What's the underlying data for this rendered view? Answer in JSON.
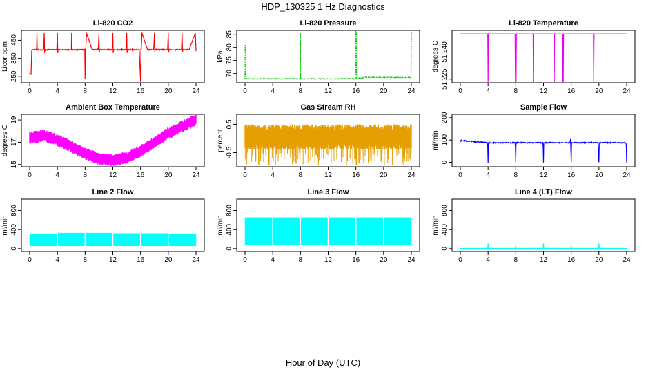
{
  "figure": {
    "title": "HDP_130325  1 Hz Diagnostics",
    "xlabel": "Hour of Day (UTC)"
  },
  "chart_data": [
    {
      "type": "line",
      "title": "Li-820 CO2",
      "xlabel": "",
      "ylabel": "Licor ppm",
      "xlim": [
        0,
        24
      ],
      "ylim": [
        215,
        505
      ],
      "x_ticks": [
        "0",
        "4",
        "8",
        "12",
        "16",
        "20",
        "24"
      ],
      "y_ticks": [
        250,
        350,
        450
      ],
      "y_tick_labels": [
        "250",
        "350",
        "450"
      ],
      "color": "#ff0000",
      "baseline": 398,
      "noise": 5,
      "draw": "line",
      "series": [
        {
          "x": [
            0,
            0.2,
            0.25,
            0.3,
            0.5,
            1.0,
            1.05,
            1.1,
            1.6,
            2.0,
            2.1,
            2.15,
            2.2,
            3.0,
            3.5,
            3.9,
            4.0,
            4.05,
            4.1,
            5.0,
            5.5,
            6.0,
            6.05,
            6.1,
            7.0,
            7.8,
            7.95,
            8.0,
            8.05,
            8.1,
            8.2,
            9.0,
            9.8,
            9.9,
            10.0,
            10.05,
            10.1,
            11.0,
            11.9,
            12.0,
            12.05,
            12.1,
            13.0,
            13.9,
            14.0,
            14.05,
            14.1,
            15.0,
            15.8,
            16.0,
            16.05,
            16.1,
            16.2,
            17.0,
            17.9,
            18.0,
            18.05,
            18.1,
            19.0,
            19.9,
            20.0,
            20.05,
            20.1,
            21.0,
            21.9,
            22.0,
            22.05,
            22.1,
            23.0,
            23.9,
            24.0
          ],
          "y": [
            265,
            265,
            330,
            398,
            398,
            398,
            490,
            398,
            398,
            398,
            490,
            380,
            398,
            398,
            398,
            398,
            490,
            380,
            398,
            398,
            398,
            398,
            490,
            398,
            398,
            398,
            400,
            235,
            400,
            398,
            490,
            398,
            398,
            398,
            490,
            385,
            398,
            398,
            398,
            490,
            380,
            398,
            398,
            398,
            490,
            380,
            398,
            398,
            398,
            220,
            400,
            398,
            490,
            398,
            398,
            490,
            385,
            398,
            398,
            398,
            490,
            382,
            398,
            398,
            398,
            490,
            385,
            398,
            398,
            490,
            390
          ]
        }
      ]
    },
    {
      "type": "line",
      "title": "Li-820 Pressure",
      "xlabel": "",
      "ylabel": "kPa",
      "xlim": [
        0,
        24
      ],
      "ylim": [
        66.5,
        86.5
      ],
      "x_ticks": [
        "0",
        "4",
        "8",
        "12",
        "16",
        "20",
        "24"
      ],
      "y_ticks": [
        70,
        75,
        80,
        85
      ],
      "y_tick_labels": [
        "70",
        "75",
        "80",
        "85"
      ],
      "color": "#00c000",
      "baseline": 68,
      "noise": 0.2,
      "draw": "dotted",
      "series": [
        {
          "x": [
            0,
            0.02,
            0.05,
            0.1,
            0.2,
            4.0,
            7.99,
            8.0,
            8.02,
            8.1,
            12.0,
            15.95,
            16.0,
            16.05,
            16.1,
            17.0,
            17.1,
            20.0,
            23.95,
            24.0
          ],
          "y": [
            68,
            81,
            73,
            70,
            68,
            68,
            68,
            85.5,
            68,
            68,
            68,
            68,
            86,
            86,
            68.3,
            68.3,
            68.6,
            68.5,
            68.5,
            86
          ]
        }
      ]
    },
    {
      "type": "line",
      "title": "Li-820 Temperature",
      "xlabel": "",
      "ylabel": "degrees C",
      "xlim": [
        0,
        24
      ],
      "ylim": [
        51.223,
        51.252
      ],
      "x_ticks": [
        "0",
        "4",
        "8",
        "12",
        "16",
        "20",
        "24"
      ],
      "y_ticks": [
        51.225,
        51.24
      ],
      "y_tick_labels": [
        "51.225",
        "51.240"
      ],
      "color": "#ee00ee",
      "baseline": 51.25,
      "noise": 0,
      "draw": "line",
      "series": [
        {
          "x": [
            0,
            3.95,
            4.0,
            4.05,
            7.9,
            7.95,
            8.0,
            8.05,
            8.1,
            10.5,
            10.55,
            10.6,
            13.5,
            13.55,
            13.6,
            14.7,
            14.75,
            14.8,
            14.85,
            14.9,
            19.2,
            19.25,
            19.3,
            24
          ],
          "y": [
            51.25,
            51.25,
            51.223,
            51.25,
            51.25,
            51.223,
            51.223,
            51.223,
            51.25,
            51.25,
            51.223,
            51.25,
            51.25,
            51.223,
            51.25,
            51.25,
            51.223,
            51.25,
            51.223,
            51.25,
            51.25,
            51.223,
            51.25,
            51.25
          ]
        }
      ]
    },
    {
      "type": "line",
      "title": "Ambient Box Temperature",
      "xlabel": "",
      "ylabel": "degrees C",
      "xlim": [
        0,
        24
      ],
      "ylim": [
        14.8,
        19.5
      ],
      "x_ticks": [
        "0",
        "4",
        "8",
        "12",
        "16",
        "20",
        "24"
      ],
      "y_ticks": [
        15,
        17,
        19
      ],
      "y_tick_labels": [
        "15",
        "17",
        "19"
      ],
      "color": "#ff00ff",
      "baseline": null,
      "noise": 0.55,
      "draw": "band",
      "series": [
        {
          "x": [
            0,
            2,
            4,
            6,
            8,
            10,
            12,
            14,
            16,
            18,
            20,
            22,
            24
          ],
          "y": [
            17.4,
            17.6,
            17.2,
            16.6,
            16.0,
            15.5,
            15.4,
            15.6,
            16.2,
            17.0,
            17.8,
            18.4,
            19.0
          ]
        }
      ]
    },
    {
      "type": "line",
      "title": "Gas Stream RH",
      "xlabel": "",
      "ylabel": "percent",
      "xlim": [
        0,
        24
      ],
      "ylim": [
        -1.0,
        0.85
      ],
      "x_ticks": [
        "0",
        "4",
        "8",
        "12",
        "16",
        "20",
        "24"
      ],
      "y_ticks": [
        -0.5,
        0.5
      ],
      "y_tick_labels": [
        "-0.5",
        "0.5"
      ],
      "color": "#e69f00",
      "baseline": null,
      "noise": 0.45,
      "draw": "band",
      "series": [
        {
          "x": [
            0,
            24
          ],
          "y": [
            0.05,
            0.05
          ]
        }
      ]
    },
    {
      "type": "line",
      "title": "Sample Flow",
      "xlabel": "",
      "ylabel": "ml/min",
      "xlim": [
        0,
        24
      ],
      "ylim": [
        -20,
        215
      ],
      "x_ticks": [
        "0",
        "4",
        "8",
        "12",
        "16",
        "20",
        "24"
      ],
      "y_ticks": [
        0,
        100,
        200
      ],
      "y_tick_labels": [
        "0",
        "100",
        "200"
      ],
      "color": "#0000ff",
      "baseline": 88,
      "noise": 4,
      "draw": "line",
      "series": [
        {
          "x": [
            0,
            0.1,
            3.9,
            3.95,
            4.0,
            4.05,
            7.9,
            7.95,
            8.0,
            8.05,
            11.9,
            11.95,
            12.0,
            12.05,
            15.85,
            15.9,
            16.0,
            16.05,
            19.85,
            19.9,
            20.0,
            20.05,
            23.9,
            23.95,
            24.0
          ],
          "y": [
            92,
            98,
            88,
            70,
            0,
            88,
            88,
            70,
            0,
            88,
            88,
            70,
            0,
            88,
            88,
            105,
            0,
            88,
            88,
            70,
            0,
            88,
            88,
            70,
            0
          ]
        }
      ]
    },
    {
      "type": "line",
      "title": "Line 2 Flow",
      "xlabel": "",
      "ylabel": "ml/min",
      "xlim": [
        0,
        24
      ],
      "ylim": [
        -60,
        1040
      ],
      "x_ticks": [
        "0",
        "4",
        "8",
        "12",
        "16",
        "20",
        "24"
      ],
      "y_ticks": [
        0,
        400,
        800
      ],
      "y_tick_labels": [
        "0",
        "400",
        "800"
      ],
      "color": "#00ffff",
      "baseline": null,
      "noise": 0,
      "draw": "blocks",
      "series": [
        {
          "x": [
            0,
            3.9,
            4.1,
            7.9,
            8.1,
            11.9,
            12.1,
            15.9,
            16.1,
            19.9,
            20.1,
            24
          ],
          "y_low": [
            60,
            60,
            60,
            60,
            60,
            60,
            60,
            60,
            60,
            60,
            60,
            60
          ],
          "y_high": [
            310,
            310,
            330,
            330,
            330,
            330,
            320,
            320,
            320,
            320,
            310,
            310
          ]
        }
      ]
    },
    {
      "type": "line",
      "title": "Line 3 Flow",
      "xlabel": "",
      "ylabel": "ml/min",
      "xlim": [
        0,
        24
      ],
      "ylim": [
        -60,
        1040
      ],
      "x_ticks": [
        "0",
        "4",
        "8",
        "12",
        "16",
        "20",
        "24"
      ],
      "y_ticks": [
        0,
        400,
        800
      ],
      "y_tick_labels": [
        "0",
        "400",
        "800"
      ],
      "color": "#00ffff",
      "baseline": null,
      "noise": 0,
      "draw": "blocks",
      "series": [
        {
          "x": [
            0,
            3.9,
            4.1,
            7.9,
            8.1,
            11.9,
            12.1,
            15.9,
            16.1,
            19.9,
            20.1,
            24
          ],
          "y_low": [
            80,
            80,
            80,
            80,
            80,
            80,
            80,
            80,
            80,
            80,
            80,
            80
          ],
          "y_high": [
            650,
            650,
            650,
            650,
            650,
            650,
            650,
            650,
            650,
            650,
            650,
            650
          ]
        }
      ]
    },
    {
      "type": "line",
      "title": "Line 4 (LT) Flow",
      "xlabel": "",
      "ylabel": "ml/min",
      "xlim": [
        0,
        24
      ],
      "ylim": [
        -60,
        1040
      ],
      "x_ticks": [
        "0",
        "4",
        "8",
        "12",
        "16",
        "20",
        "24"
      ],
      "y_ticks": [
        0,
        400,
        800
      ],
      "y_tick_labels": [
        "0",
        "400",
        "800"
      ],
      "color": "#00ffff",
      "baseline": 5,
      "noise": 0,
      "draw": "line",
      "series": [
        {
          "x": [
            0,
            3.95,
            4.0,
            4.05,
            7.95,
            8.0,
            8.05,
            11.95,
            12.0,
            12.05,
            15.95,
            16.0,
            16.05,
            19.95,
            20.0,
            20.05,
            24
          ],
          "y": [
            5,
            5,
            110,
            5,
            5,
            70,
            5,
            5,
            110,
            5,
            5,
            70,
            5,
            5,
            110,
            5,
            5
          ]
        }
      ]
    }
  ]
}
